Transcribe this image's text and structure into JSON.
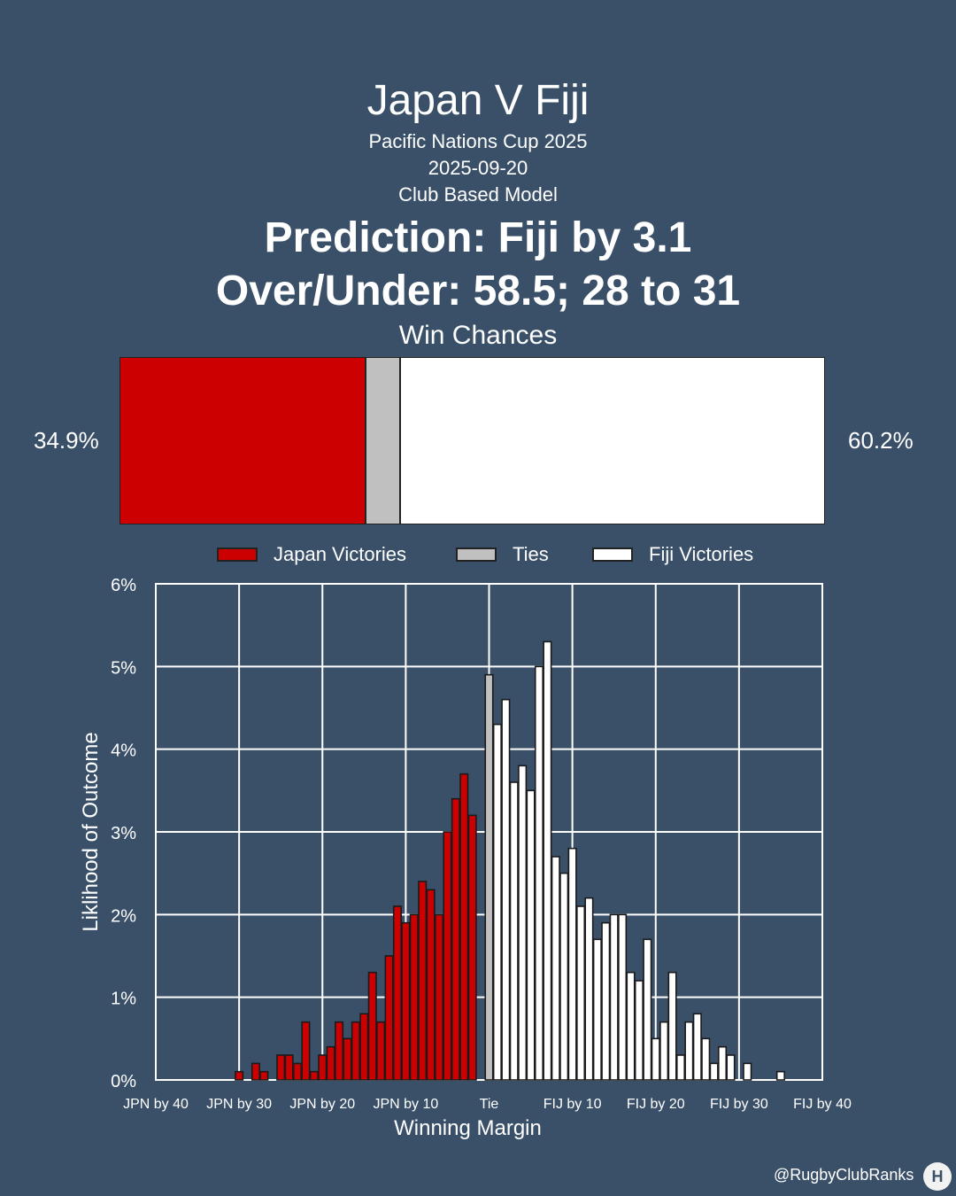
{
  "header": {
    "title": "Japan V Fiji",
    "competition": "Pacific Nations Cup 2025",
    "date": "2025-09-20",
    "model": "Club Based Model",
    "prediction": "Prediction: Fiji by 3.1",
    "over_under": "Over/Under: 58.5; 28 to 31"
  },
  "win_chances": {
    "title": "Win Chances",
    "home_label": "34.9%",
    "away_label": "60.2%",
    "home": 34.9,
    "tie": 4.9,
    "away": 60.2
  },
  "colors": {
    "background": "#3a5069",
    "home": "#cc0000",
    "tie": "#c0c0c0",
    "away": "#ffffff"
  },
  "legend": {
    "home": "Japan Victories",
    "tie": "Ties",
    "away": "Fiji Victories"
  },
  "chart_data": {
    "type": "bar",
    "xlabel": "Winning Margin",
    "ylabel": "Liklihood of Outcome",
    "x_tick_labels": [
      "JPN by 40",
      "JPN by 30",
      "JPN by 20",
      "JPN by 10",
      "Tie",
      "FIJ by 10",
      "FIJ by 20",
      "FIJ by 30",
      "FIJ by 40"
    ],
    "y_tick_labels": [
      "0%",
      "1%",
      "2%",
      "3%",
      "4%",
      "5%",
      "6%"
    ],
    "xlim": [
      -40,
      40
    ],
    "ylim": [
      0,
      6
    ],
    "grid": true,
    "series": [
      {
        "group": "home",
        "x": [
          -30,
          -29,
          -28,
          -27,
          -26,
          -25,
          -24,
          -23,
          -22,
          -21,
          -20,
          -19,
          -18,
          -17,
          -16,
          -15,
          -14,
          -13,
          -12,
          -11,
          -10,
          -9,
          -8,
          -7,
          -6,
          -5,
          -4,
          -3,
          -2,
          -1
        ],
        "values": [
          0.1,
          0,
          0.2,
          0.1,
          0,
          0.3,
          0.3,
          0.2,
          0.7,
          0.1,
          0.3,
          0.4,
          0.7,
          0.5,
          0.7,
          0.8,
          1.3,
          0.7,
          1.5,
          2.1,
          1.9,
          2.0,
          2.4,
          2.3,
          2.0,
          3.0,
          3.4,
          3.7,
          3.2,
          0
        ]
      },
      {
        "group": "tie",
        "x": [
          0
        ],
        "values": [
          4.9
        ]
      },
      {
        "group": "away",
        "x": [
          1,
          2,
          3,
          4,
          5,
          6,
          7,
          8,
          9,
          10,
          11,
          12,
          13,
          14,
          15,
          16,
          17,
          18,
          19,
          20,
          21,
          22,
          23,
          24,
          25,
          26,
          27,
          28,
          29,
          30,
          31,
          32,
          33,
          34,
          35,
          36,
          37,
          38
        ],
        "values": [
          4.3,
          4.6,
          3.6,
          3.8,
          3.5,
          5.0,
          5.3,
          2.7,
          2.5,
          2.8,
          2.1,
          2.2,
          1.7,
          1.9,
          2.0,
          2.0,
          1.3,
          1.2,
          1.7,
          0.5,
          0.7,
          1.3,
          0.3,
          0.7,
          0.8,
          0.5,
          0.2,
          0.4,
          0.3,
          0,
          0.2,
          0,
          0,
          0,
          0.1,
          0,
          0,
          0
        ]
      }
    ]
  },
  "footer": {
    "credit": "@RugbyClubRanks",
    "logo_icon": "rugby-posts-icon",
    "logo_glyph": "H"
  }
}
